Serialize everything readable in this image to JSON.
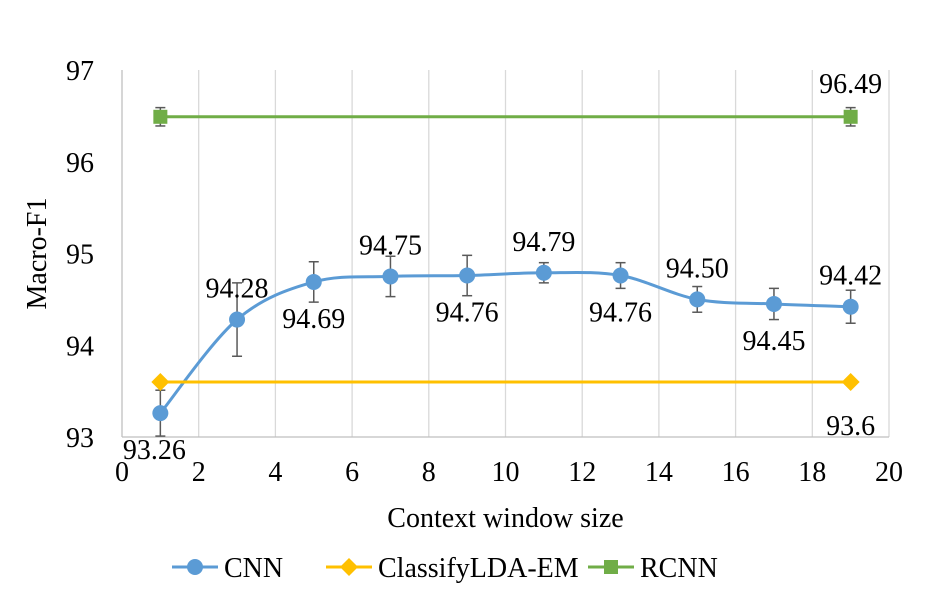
{
  "chart_data": {
    "type": "line",
    "title": "",
    "xlabel": "Context window size",
    "ylabel": "Macro-F1",
    "xlim": [
      0,
      20
    ],
    "ylim": [
      93,
      97
    ],
    "xticks": [
      0,
      2,
      4,
      6,
      8,
      10,
      12,
      14,
      16,
      18,
      20
    ],
    "yticks": [
      93,
      94,
      95,
      96,
      97
    ],
    "grid": "vertical",
    "legend": "bottom",
    "series": [
      {
        "name": "CNN",
        "color": "#5B9BD5",
        "marker": "circle",
        "smooth": true,
        "x": [
          1,
          3,
          5,
          7,
          9,
          11,
          13,
          15,
          17,
          19
        ],
        "y": [
          93.26,
          94.28,
          94.69,
          94.75,
          94.76,
          94.79,
          94.76,
          94.5,
          94.45,
          94.42
        ],
        "labels": [
          "93.26",
          "94.28",
          "94.69",
          "94.75",
          "94.76",
          "94.79",
          "94.76",
          "94.50",
          "94.45",
          "94.42"
        ],
        "errors": [
          0.25,
          0.4,
          0.22,
          0.22,
          0.22,
          0.11,
          0.14,
          0.14,
          0.17,
          0.18
        ]
      },
      {
        "name": "ClassifyLDA-EM",
        "color": "#FFC000",
        "marker": "diamond",
        "x": [
          1,
          19
        ],
        "y": [
          93.6,
          93.6
        ],
        "labels": [
          "",
          "93.6"
        ],
        "errors": [
          0,
          0
        ]
      },
      {
        "name": "RCNN",
        "color": "#70AD47",
        "marker": "square",
        "x": [
          1,
          19
        ],
        "y": [
          96.49,
          96.49
        ],
        "labels": [
          "",
          "96.49"
        ],
        "errors": [
          0.1,
          0.1
        ]
      }
    ]
  }
}
